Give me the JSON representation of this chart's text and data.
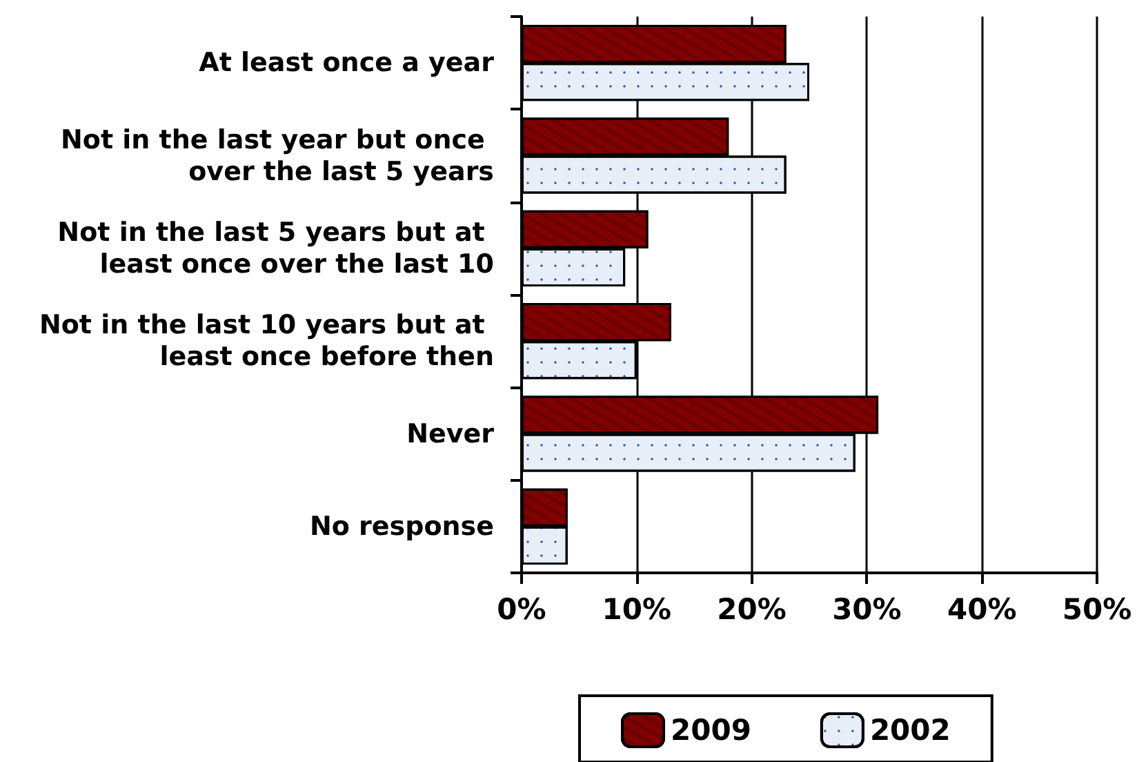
{
  "chart_data": {
    "type": "bar",
    "orientation": "horizontal",
    "categories": [
      "At least once a year",
      "Not in the last year but once over the last 5 years",
      "Not in the last 5 years but at least once over the last 10",
      "Not in the last 10 years but at least once before then",
      "Never",
      "No response"
    ],
    "series": [
      {
        "name": "2009",
        "color": "#800000",
        "values": [
          23,
          18,
          11,
          13,
          31,
          4
        ]
      },
      {
        "name": "2002",
        "color": "#e8eef8",
        "values": [
          25,
          23,
          9,
          10,
          29,
          4
        ]
      }
    ],
    "xlim": [
      0,
      50
    ],
    "xticks": [
      {
        "value": 0,
        "label": "0%"
      },
      {
        "value": 10,
        "label": "10%"
      },
      {
        "value": 20,
        "label": "20%"
      },
      {
        "value": 30,
        "label": "30%"
      },
      {
        "value": 40,
        "label": "40%"
      },
      {
        "value": 50,
        "label": "50%"
      }
    ],
    "grid": "x",
    "legend": "bottom"
  }
}
